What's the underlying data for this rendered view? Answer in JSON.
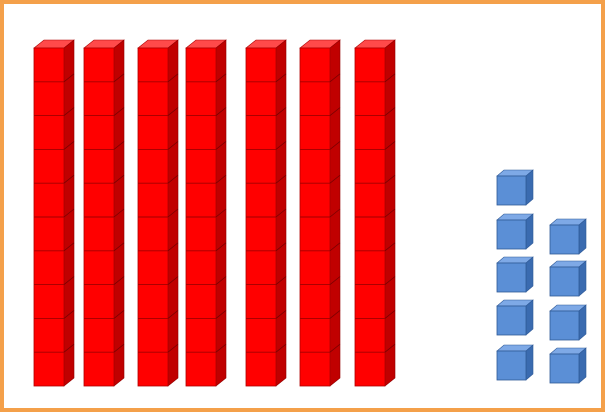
{
  "diagram": {
    "description_type": "base-ten blocks",
    "tens_rods": {
      "count": 7,
      "units_per_rod": 10,
      "color": "#ff0000",
      "shade_color": "#c00000",
      "top_color": "#ff4a4a"
    },
    "ones_cubes": {
      "count": 9,
      "columns": [
        5,
        4
      ],
      "color": "#5b8fd6",
      "shade_color": "#3a6bb0",
      "top_color": "#7ea9e6"
    },
    "border_color": "#f4a04a"
  }
}
